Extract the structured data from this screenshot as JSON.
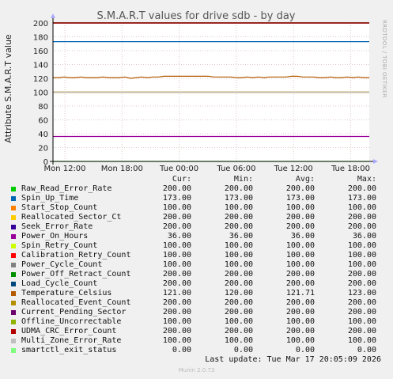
{
  "chart_data": {
    "type": "line",
    "title": "S.M.A.R.T values for drive sdb - by day",
    "ylabel": "Attribute S.M.A.R.T value",
    "vertical_label": "RRDTOOL / TOBI OETIKER",
    "ylim": [
      0,
      200
    ],
    "yticks": [
      "0",
      "20",
      "40",
      "60",
      "80",
      "100",
      "120",
      "140",
      "160",
      "180",
      "200"
    ],
    "xticks": [
      "Mon 12:00",
      "Mon 18:00",
      "Tue 00:00",
      "Tue 06:00",
      "Tue 12:00",
      "Tue 18:00"
    ],
    "grid": true,
    "legend_headers": {
      "cur": "Cur:",
      "min": "Min:",
      "avg": "Avg:",
      "max": "Max:"
    },
    "series": [
      {
        "name": "Raw_Read_Error_Rate",
        "color": "#00cc00",
        "cur": "200.00",
        "min": "200.00",
        "avg": "200.00",
        "max": "200.00",
        "level": 200
      },
      {
        "name": "Spin_Up_Time",
        "color": "#0066b3",
        "cur": "173.00",
        "min": "173.00",
        "avg": "173.00",
        "max": "173.00",
        "level": 173
      },
      {
        "name": "Start_Stop_Count",
        "color": "#ff8000",
        "cur": "100.00",
        "min": "100.00",
        "avg": "100.00",
        "max": "100.00",
        "level": 100
      },
      {
        "name": "Reallocated_Sector_Ct",
        "color": "#ffcc00",
        "cur": "200.00",
        "min": "200.00",
        "avg": "200.00",
        "max": "200.00",
        "level": 200
      },
      {
        "name": "Seek_Error_Rate",
        "color": "#330099",
        "cur": "200.00",
        "min": "200.00",
        "avg": "200.00",
        "max": "200.00",
        "level": 200
      },
      {
        "name": "Power_On_Hours",
        "color": "#990099",
        "cur": "36.00",
        "min": "36.00",
        "avg": "36.00",
        "max": "36.00",
        "level": 36
      },
      {
        "name": "Spin_Retry_Count",
        "color": "#ccff00",
        "cur": "100.00",
        "min": "100.00",
        "avg": "100.00",
        "max": "100.00",
        "level": 100
      },
      {
        "name": "Calibration_Retry_Count",
        "color": "#ff0000",
        "cur": "100.00",
        "min": "100.00",
        "avg": "100.00",
        "max": "100.00",
        "level": 100
      },
      {
        "name": "Power_Cycle_Count",
        "color": "#808080",
        "cur": "100.00",
        "min": "100.00",
        "avg": "100.00",
        "max": "100.00",
        "level": 100
      },
      {
        "name": "Power_Off_Retract_Count",
        "color": "#008f00",
        "cur": "200.00",
        "min": "200.00",
        "avg": "200.00",
        "max": "200.00",
        "level": 200
      },
      {
        "name": "Load_Cycle_Count",
        "color": "#00487d",
        "cur": "200.00",
        "min": "200.00",
        "avg": "200.00",
        "max": "200.00",
        "level": 200
      },
      {
        "name": "Temperature_Celsius",
        "color": "#b35a00",
        "cur": "121.00",
        "min": "120.00",
        "avg": "121.71",
        "max": "123.00",
        "level": 121
      },
      {
        "name": "Reallocated_Event_Count",
        "color": "#b38f00",
        "cur": "200.00",
        "min": "200.00",
        "avg": "200.00",
        "max": "200.00",
        "level": 200
      },
      {
        "name": "Current_Pending_Sector",
        "color": "#6b006b",
        "cur": "200.00",
        "min": "200.00",
        "avg": "200.00",
        "max": "200.00",
        "level": 200
      },
      {
        "name": "Offline_Uncorrectable",
        "color": "#8fb300",
        "cur": "100.00",
        "min": "100.00",
        "avg": "100.00",
        "max": "100.00",
        "level": 100
      },
      {
        "name": "UDMA_CRC_Error_Count",
        "color": "#b30000",
        "cur": "200.00",
        "min": "200.00",
        "avg": "200.00",
        "max": "200.00",
        "level": 200
      },
      {
        "name": "Multi_Zone_Error_Rate",
        "color": "#bebebe",
        "cur": "100.00",
        "min": "100.00",
        "avg": "100.00",
        "max": "100.00",
        "level": 100
      },
      {
        "name": "smartctl_exit_status",
        "color": "#80ff80",
        "cur": "0.00",
        "min": "0.00",
        "avg": "0.00",
        "max": "0.00",
        "level": 0
      }
    ],
    "temperature_trace": [
      121,
      121,
      122,
      121,
      121,
      122,
      121,
      121,
      121,
      122,
      121,
      121,
      121,
      122,
      120,
      121,
      122,
      121,
      122,
      122,
      123,
      123,
      123,
      123,
      123,
      123,
      123,
      123,
      123,
      122,
      122,
      122,
      122,
      121,
      121,
      122,
      121,
      122,
      121,
      122,
      122,
      122,
      122,
      123,
      123,
      122,
      122,
      122,
      121,
      121,
      122,
      121,
      121,
      122,
      121,
      122,
      121,
      121
    ]
  },
  "footer": {
    "last_update": "Last update: Tue Mar 17 20:05:09 2026",
    "version": "Munin 2.0.73"
  }
}
